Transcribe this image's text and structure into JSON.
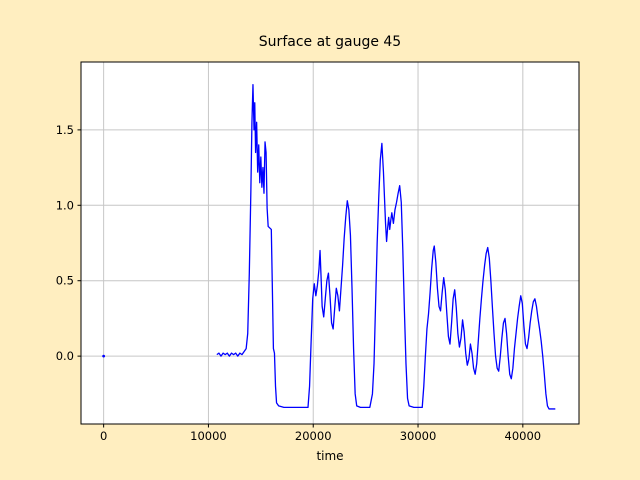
{
  "chart_data": {
    "type": "line",
    "title": "Surface at gauge 45",
    "xlabel": "time",
    "ylabel": "",
    "figure_bg": "#ffeec0",
    "plot_bg": "#ffffff",
    "grid": true,
    "grid_color": "#c6c6c6",
    "spine_color": "#000000",
    "line_color": "#0000ff",
    "xlim": [
      -2160,
      45360
    ],
    "ylim": [
      -0.45,
      1.95
    ],
    "xticks": [
      0,
      10000,
      20000,
      30000,
      40000
    ],
    "xtick_labels": [
      "0",
      "10000",
      "20000",
      "30000",
      "40000"
    ],
    "yticks": [
      0.0,
      0.5,
      1.0,
      1.5
    ],
    "ytick_labels": [
      "0.0",
      "0.5",
      "1.0",
      "1.5"
    ],
    "isolated_points": [
      [
        0,
        0.0
      ]
    ],
    "series": [
      {
        "name": "surface",
        "points": [
          [
            10800,
            0.01
          ],
          [
            11000,
            0.02
          ],
          [
            11200,
            0
          ],
          [
            11400,
            0.02
          ],
          [
            11600,
            0.01
          ],
          [
            11800,
            0.02
          ],
          [
            12000,
            0
          ],
          [
            12200,
            0.02
          ],
          [
            12400,
            0.01
          ],
          [
            12600,
            0.02
          ],
          [
            12800,
            0
          ],
          [
            13000,
            0.02
          ],
          [
            13200,
            0.01
          ],
          [
            13400,
            0.03
          ],
          [
            13600,
            0.05
          ],
          [
            13750,
            0.15
          ],
          [
            13900,
            0.55
          ],
          [
            14050,
            1.1
          ],
          [
            14150,
            1.55
          ],
          [
            14250,
            1.8
          ],
          [
            14350,
            1.5
          ],
          [
            14420,
            1.68
          ],
          [
            14500,
            1.35
          ],
          [
            14600,
            1.55
          ],
          [
            14700,
            1.22
          ],
          [
            14800,
            1.4
          ],
          [
            14900,
            1.15
          ],
          [
            15000,
            1.32
          ],
          [
            15100,
            1.12
          ],
          [
            15200,
            1.25
          ],
          [
            15300,
            1.08
          ],
          [
            15400,
            1.42
          ],
          [
            15500,
            1.35
          ],
          [
            15600,
            0.98
          ],
          [
            15700,
            0.86
          ],
          [
            15850,
            0.85
          ],
          [
            16000,
            0.84
          ],
          [
            16100,
            0.45
          ],
          [
            16200,
            0.05
          ],
          [
            16300,
            0.02
          ],
          [
            16400,
            -0.2
          ],
          [
            16500,
            -0.31
          ],
          [
            16700,
            -0.33
          ],
          [
            17200,
            -0.34
          ],
          [
            17700,
            -0.34
          ],
          [
            18200,
            -0.34
          ],
          [
            18700,
            -0.34
          ],
          [
            19200,
            -0.34
          ],
          [
            19500,
            -0.34
          ],
          [
            19650,
            -0.2
          ],
          [
            19800,
            0.1
          ],
          [
            19950,
            0.38
          ],
          [
            20100,
            0.48
          ],
          [
            20250,
            0.4
          ],
          [
            20400,
            0.47
          ],
          [
            20550,
            0.58
          ],
          [
            20650,
            0.7
          ],
          [
            20750,
            0.52
          ],
          [
            20850,
            0.33
          ],
          [
            21000,
            0.26
          ],
          [
            21150,
            0.38
          ],
          [
            21300,
            0.5
          ],
          [
            21450,
            0.55
          ],
          [
            21600,
            0.4
          ],
          [
            21750,
            0.22
          ],
          [
            21900,
            0.18
          ],
          [
            22050,
            0.32
          ],
          [
            22200,
            0.45
          ],
          [
            22350,
            0.4
          ],
          [
            22500,
            0.3
          ],
          [
            22650,
            0.45
          ],
          [
            22800,
            0.6
          ],
          [
            22950,
            0.78
          ],
          [
            23100,
            0.92
          ],
          [
            23250,
            1.03
          ],
          [
            23400,
            0.97
          ],
          [
            23550,
            0.8
          ],
          [
            23700,
            0.45
          ],
          [
            23850,
            0.05
          ],
          [
            24000,
            -0.25
          ],
          [
            24150,
            -0.33
          ],
          [
            24500,
            -0.34
          ],
          [
            25000,
            -0.34
          ],
          [
            25400,
            -0.34
          ],
          [
            25650,
            -0.25
          ],
          [
            25800,
            -0.05
          ],
          [
            25950,
            0.35
          ],
          [
            26100,
            0.75
          ],
          [
            26250,
            1.05
          ],
          [
            26400,
            1.3
          ],
          [
            26550,
            1.41
          ],
          [
            26700,
            1.22
          ],
          [
            26800,
            1.05
          ],
          [
            26900,
            0.88
          ],
          [
            27000,
            0.76
          ],
          [
            27100,
            0.85
          ],
          [
            27200,
            0.92
          ],
          [
            27300,
            0.84
          ],
          [
            27400,
            0.9
          ],
          [
            27500,
            0.95
          ],
          [
            27650,
            0.88
          ],
          [
            27800,
            0.97
          ],
          [
            27950,
            1.02
          ],
          [
            28100,
            1.08
          ],
          [
            28250,
            1.13
          ],
          [
            28400,
            1.02
          ],
          [
            28550,
            0.7
          ],
          [
            28700,
            0.3
          ],
          [
            28850,
            -0.05
          ],
          [
            29000,
            -0.28
          ],
          [
            29150,
            -0.33
          ],
          [
            29600,
            -0.34
          ],
          [
            30100,
            -0.34
          ],
          [
            30400,
            -0.34
          ],
          [
            30550,
            -0.2
          ],
          [
            30700,
            0
          ],
          [
            30850,
            0.18
          ],
          [
            31000,
            0.28
          ],
          [
            31150,
            0.42
          ],
          [
            31300,
            0.58
          ],
          [
            31450,
            0.7
          ],
          [
            31550,
            0.73
          ],
          [
            31700,
            0.62
          ],
          [
            31850,
            0.45
          ],
          [
            32000,
            0.33
          ],
          [
            32150,
            0.3
          ],
          [
            32300,
            0.42
          ],
          [
            32450,
            0.52
          ],
          [
            32600,
            0.44
          ],
          [
            32750,
            0.28
          ],
          [
            32900,
            0.13
          ],
          [
            33050,
            0.08
          ],
          [
            33200,
            0.22
          ],
          [
            33350,
            0.38
          ],
          [
            33500,
            0.44
          ],
          [
            33650,
            0.32
          ],
          [
            33800,
            0.15
          ],
          [
            33950,
            0.06
          ],
          [
            34100,
            0.12
          ],
          [
            34250,
            0.24
          ],
          [
            34400,
            0.16
          ],
          [
            34550,
            0.02
          ],
          [
            34700,
            -0.06
          ],
          [
            34850,
            -0.02
          ],
          [
            35000,
            0.08
          ],
          [
            35150,
            0.02
          ],
          [
            35300,
            -0.08
          ],
          [
            35450,
            -0.12
          ],
          [
            35600,
            -0.05
          ],
          [
            35750,
            0.1
          ],
          [
            35900,
            0.25
          ],
          [
            36050,
            0.38
          ],
          [
            36200,
            0.5
          ],
          [
            36350,
            0.6
          ],
          [
            36500,
            0.68
          ],
          [
            36650,
            0.72
          ],
          [
            36800,
            0.65
          ],
          [
            36950,
            0.5
          ],
          [
            37100,
            0.32
          ],
          [
            37250,
            0.15
          ],
          [
            37400,
            0
          ],
          [
            37550,
            -0.08
          ],
          [
            37700,
            -0.1
          ],
          [
            37850,
            0
          ],
          [
            38000,
            0.12
          ],
          [
            38150,
            0.22
          ],
          [
            38300,
            0.25
          ],
          [
            38450,
            0.15
          ],
          [
            38600,
            0
          ],
          [
            38750,
            -0.12
          ],
          [
            38900,
            -0.15
          ],
          [
            39050,
            -0.08
          ],
          [
            39200,
            0.05
          ],
          [
            39350,
            0.15
          ],
          [
            39500,
            0.25
          ],
          [
            39650,
            0.33
          ],
          [
            39800,
            0.4
          ],
          [
            39950,
            0.35
          ],
          [
            40100,
            0.2
          ],
          [
            40250,
            0.08
          ],
          [
            40400,
            0.05
          ],
          [
            40550,
            0.12
          ],
          [
            40700,
            0.22
          ],
          [
            40850,
            0.3
          ],
          [
            41000,
            0.36
          ],
          [
            41150,
            0.38
          ],
          [
            41300,
            0.33
          ],
          [
            41450,
            0.25
          ],
          [
            41600,
            0.18
          ],
          [
            41750,
            0.1
          ],
          [
            41900,
            0
          ],
          [
            42050,
            -0.12
          ],
          [
            42200,
            -0.25
          ],
          [
            42350,
            -0.33
          ],
          [
            42500,
            -0.35
          ],
          [
            42800,
            -0.35
          ],
          [
            43100,
            -0.35
          ]
        ]
      }
    ]
  }
}
